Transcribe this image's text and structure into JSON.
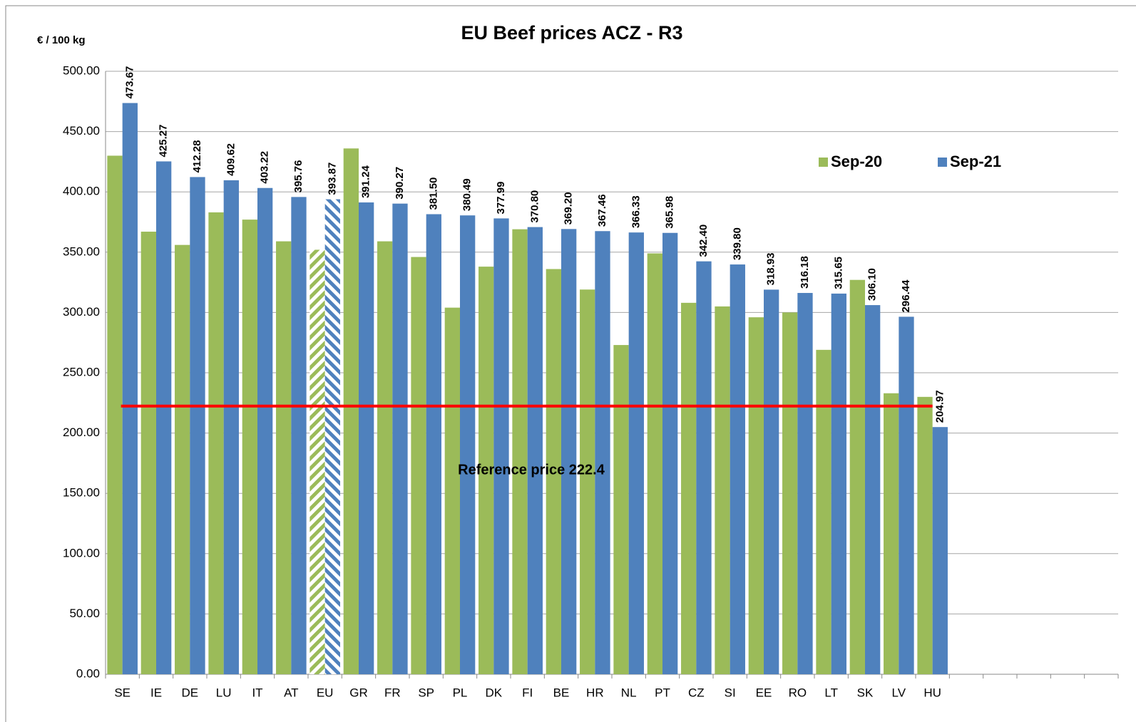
{
  "chart_data": {
    "type": "bar",
    "title": "EU Beef prices ACZ - R3",
    "y_label": "€ / 100 kg",
    "categories": [
      "SE",
      "IE",
      "DE",
      "LU",
      "IT",
      "AT",
      "EU",
      "GR",
      "FR",
      "SP",
      "PL",
      "DK",
      "FI",
      "BE",
      "HR",
      "NL",
      "PT",
      "CZ",
      "SI",
      "EE",
      "RO",
      "LT",
      "SK",
      "LV",
      "HU",
      null,
      null,
      null,
      null,
      null
    ],
    "series": [
      {
        "name": "Sep-20",
        "color": "#9bbb59",
        "values": [
          430,
          367,
          356,
          383,
          377,
          359,
          352,
          436,
          359,
          346,
          304,
          338,
          369,
          336,
          319,
          273,
          349,
          308,
          305,
          296,
          300,
          269,
          327,
          233,
          230,
          null,
          null,
          null,
          null,
          null
        ]
      },
      {
        "name": "Sep-21",
        "color": "#4f81bd",
        "values": [
          473.67,
          425.27,
          412.28,
          409.62,
          403.22,
          395.76,
          393.87,
          391.24,
          390.27,
          381.5,
          380.49,
          377.99,
          370.8,
          369.2,
          367.46,
          366.33,
          365.98,
          342.4,
          339.8,
          318.93,
          316.18,
          315.65,
          306.1,
          296.44,
          204.97,
          null,
          null,
          null,
          null,
          null
        ],
        "value_labels": [
          "473.67",
          "425.27",
          "412.28",
          "409.62",
          "403.22",
          "395.76",
          "393.87",
          "391.24",
          "390.27",
          "381.50",
          "380.49",
          "377.99",
          "370.80",
          "369.20",
          "367.46",
          "366.33",
          "365.98",
          "342.40",
          "339.80",
          "318.93",
          "316.18",
          "315.65",
          "306.10",
          "296.44",
          "204.97",
          null,
          null,
          null,
          null,
          null
        ]
      }
    ],
    "hatched_categories": [
      "EU"
    ],
    "reference": {
      "value": 222.4,
      "label": "Reference price 222.4",
      "color": "#ff0000"
    },
    "ylim": [
      0,
      500
    ],
    "yticks": [
      {
        "value": 0,
        "label": "0.00"
      },
      {
        "value": 50,
        "label": "50.00"
      },
      {
        "value": 100,
        "label": "100.00"
      },
      {
        "value": 150,
        "label": "150.00"
      },
      {
        "value": 200,
        "label": "200.00"
      },
      {
        "value": 250,
        "label": "250.00"
      },
      {
        "value": 300,
        "label": "300.00"
      },
      {
        "value": 350,
        "label": "350.00"
      },
      {
        "value": 400,
        "label": "400.00"
      },
      {
        "value": 450,
        "label": "450.00"
      },
      {
        "value": 500,
        "label": "500.00"
      }
    ],
    "grid": true,
    "legend": "top-right"
  }
}
